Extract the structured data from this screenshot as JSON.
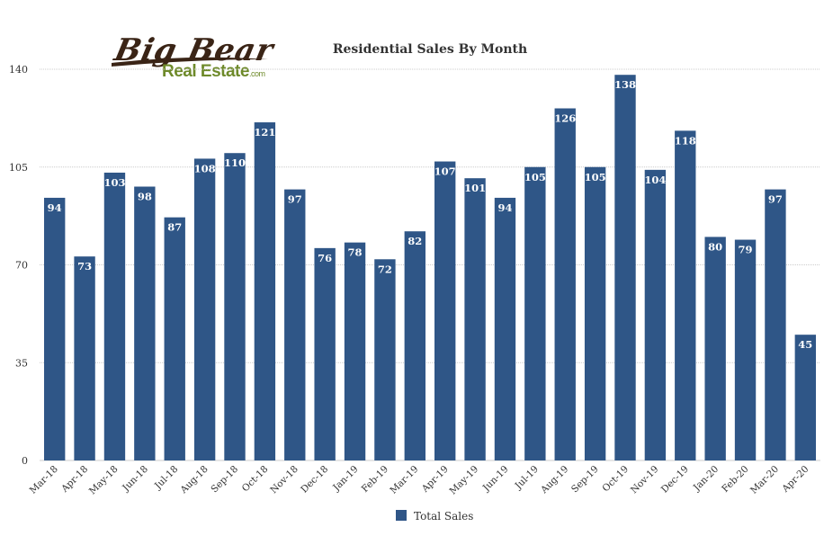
{
  "logo": {
    "big_text": "Big Bear",
    "real_text": "Real Estate",
    "com_text": ".com"
  },
  "colors": {
    "bar": "#2f5687",
    "grid": "#cccccc",
    "label": "#ffffff",
    "text": "#333333"
  },
  "chart_data": {
    "type": "bar",
    "title": "Residential Sales By Month",
    "xlabel": "",
    "ylabel": "",
    "ylim": [
      0,
      140
    ],
    "yticks": [
      0,
      35,
      70,
      105,
      140
    ],
    "grid": true,
    "legend_position": "bottom",
    "categories": [
      "Mar-18",
      "Apr-18",
      "May-18",
      "Jun-18",
      "Jul-18",
      "Aug-18",
      "Sep-18",
      "Oct-18",
      "Nov-18",
      "Dec-18",
      "Jan-19",
      "Feb-19",
      "Mar-19",
      "Apr-19",
      "May-19",
      "Jun-19",
      "Jul-19",
      "Aug-19",
      "Sep-19",
      "Oct-19",
      "Nov-19",
      "Dec-19",
      "Jan-20",
      "Feb-20",
      "Mar-20",
      "Apr-20"
    ],
    "series": [
      {
        "name": "Total Sales",
        "values": [
          94,
          73,
          103,
          98,
          87,
          108,
          110,
          121,
          97,
          76,
          78,
          72,
          82,
          107,
          101,
          94,
          105,
          126,
          105,
          138,
          104,
          118,
          80,
          79,
          97,
          45
        ]
      }
    ]
  }
}
